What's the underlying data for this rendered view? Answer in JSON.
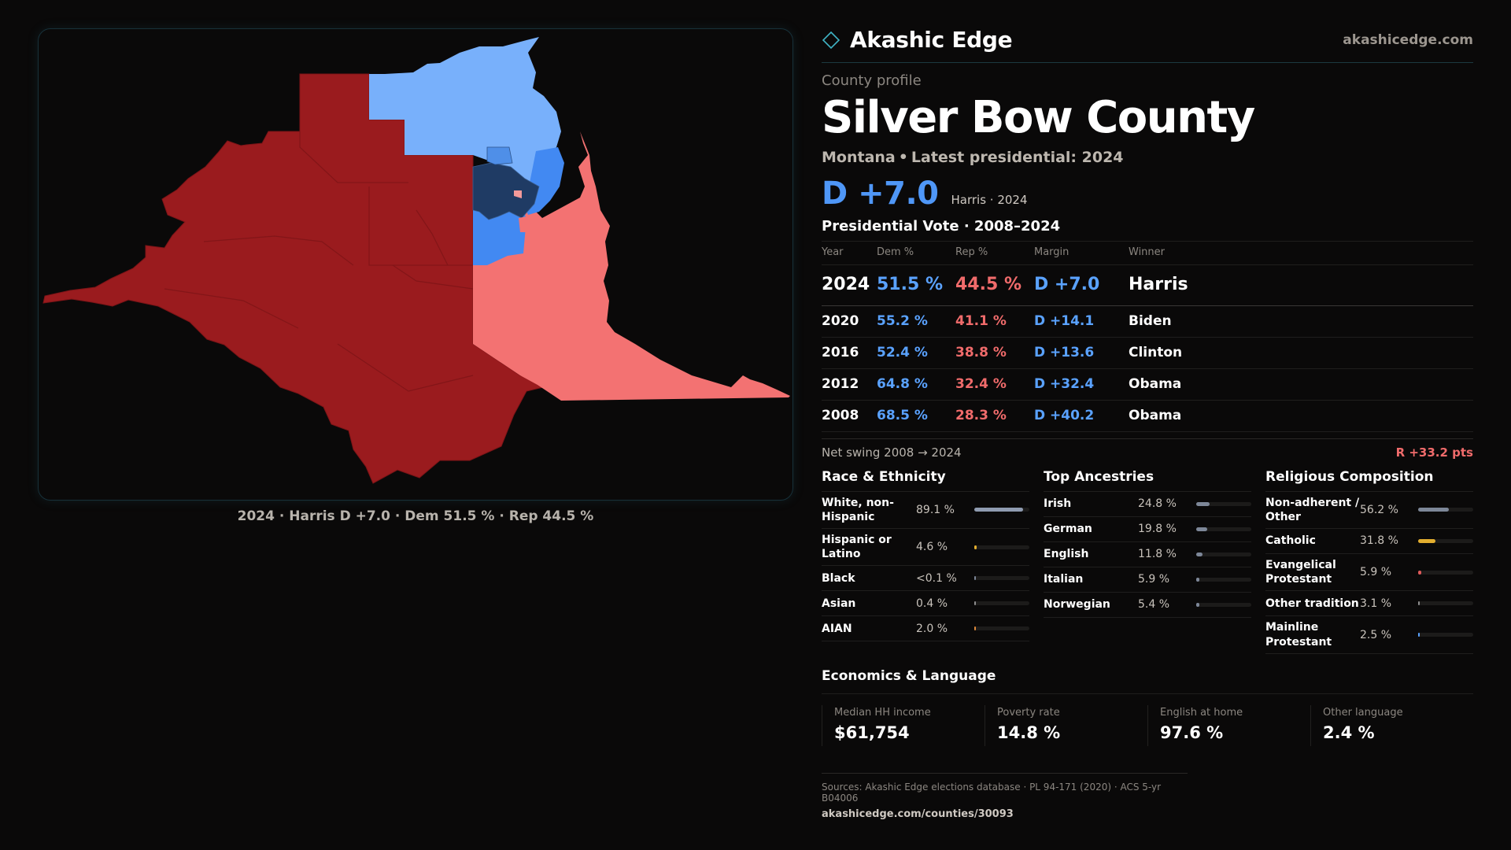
{
  "brand": {
    "name": "Akashic Edge",
    "url": "akashicedge.com"
  },
  "colors": {
    "accent_blue": "#4f97f7",
    "accent_red": "#f06b6b",
    "map_dark_red": "#9a1b1e",
    "map_light_red": "#f37272",
    "map_light_blue": "#78b0fb",
    "map_mid_blue": "#4289f2",
    "map_navy": "#1f3b64",
    "catholic_gold": "#e3ae2f"
  },
  "map": {
    "caption": "2024 · Harris D +7.0 · Dem 51.5 % · Rep 44.5 %"
  },
  "profile": {
    "kicker": "County profile",
    "county": "Silver Bow County",
    "state": "Montana",
    "latest": "Latest presidential: 2024",
    "headline_margin": "D +7.0",
    "headline_note": "Harris · 2024"
  },
  "votes": {
    "title": "Presidential Vote · 2008–2024",
    "columns": [
      "Year",
      "Dem %",
      "Rep %",
      "Margin",
      "Winner"
    ],
    "rows": [
      {
        "year": "2024",
        "dem": "51.5 %",
        "rep": "44.5 %",
        "margin": "D +7.0",
        "winner": "Harris"
      },
      {
        "year": "2020",
        "dem": "55.2 %",
        "rep": "41.1 %",
        "margin": "D +14.1",
        "winner": "Biden"
      },
      {
        "year": "2016",
        "dem": "52.4 %",
        "rep": "38.8 %",
        "margin": "D +13.6",
        "winner": "Clinton"
      },
      {
        "year": "2012",
        "dem": "64.8 %",
        "rep": "32.4 %",
        "margin": "D +32.4",
        "winner": "Obama"
      },
      {
        "year": "2008",
        "dem": "68.5 %",
        "rep": "28.3 %",
        "margin": "D +40.2",
        "winner": "Obama"
      }
    ],
    "swing_label": "Net swing 2008 → 2024",
    "swing_value": "R +33.2 pts"
  },
  "race": {
    "title": "Race & Ethnicity",
    "rows": [
      {
        "label": "White, non-Hispanic",
        "value": "89.1 %",
        "pct": 89.1,
        "color": "#8f9bb0"
      },
      {
        "label": "Hispanic or Latino",
        "value": "4.6 %",
        "pct": 4.6,
        "color": "#e3ae2f"
      },
      {
        "label": "Black",
        "value": "<0.1 %",
        "pct": 0.05,
        "color": "#7d8798"
      },
      {
        "label": "Asian",
        "value": "0.4 %",
        "pct": 0.4,
        "color": "#8e8e8e"
      },
      {
        "label": "AIAN",
        "value": "2.0 %",
        "pct": 2.0,
        "color": "#e08a3a"
      }
    ]
  },
  "ancestry": {
    "title": "Top Ancestries",
    "rows": [
      {
        "label": "Irish",
        "value": "24.8 %",
        "pct": 24.8
      },
      {
        "label": "German",
        "value": "19.8 %",
        "pct": 19.8
      },
      {
        "label": "English",
        "value": "11.8 %",
        "pct": 11.8
      },
      {
        "label": "Italian",
        "value": "5.9 %",
        "pct": 5.9
      },
      {
        "label": "Norwegian",
        "value": "5.4 %",
        "pct": 5.4
      }
    ]
  },
  "religion": {
    "title": "Religious Composition",
    "rows": [
      {
        "label": "Non-adherent / Other",
        "value": "56.2 %",
        "pct": 56.2,
        "color": "#7d8798"
      },
      {
        "label": "Catholic",
        "value": "31.8 %",
        "pct": 31.8,
        "color": "#e3ae2f"
      },
      {
        "label": "Evangelical Protestant",
        "value": "5.9 %",
        "pct": 5.9,
        "color": "#e05a5a"
      },
      {
        "label": "Other tradition",
        "value": "3.1 %",
        "pct": 3.1,
        "color": "#8e8e8e"
      },
      {
        "label": "Mainline Protestant",
        "value": "2.5 %",
        "pct": 2.5,
        "color": "#5aa2ff"
      }
    ]
  },
  "economics": {
    "title": "Economics & Language",
    "cells": [
      {
        "label": "Median HH income",
        "value": "$61,754"
      },
      {
        "label": "Poverty rate",
        "value": "14.8 %"
      },
      {
        "label": "English at home",
        "value": "97.6 %"
      },
      {
        "label": "Other language",
        "value": "2.4 %"
      }
    ]
  },
  "sources": {
    "text": "Sources: Akashic Edge elections database · PL 94-171 (2020) · ACS 5-yr B04006",
    "link": "akashicedge.com/counties/30093"
  }
}
